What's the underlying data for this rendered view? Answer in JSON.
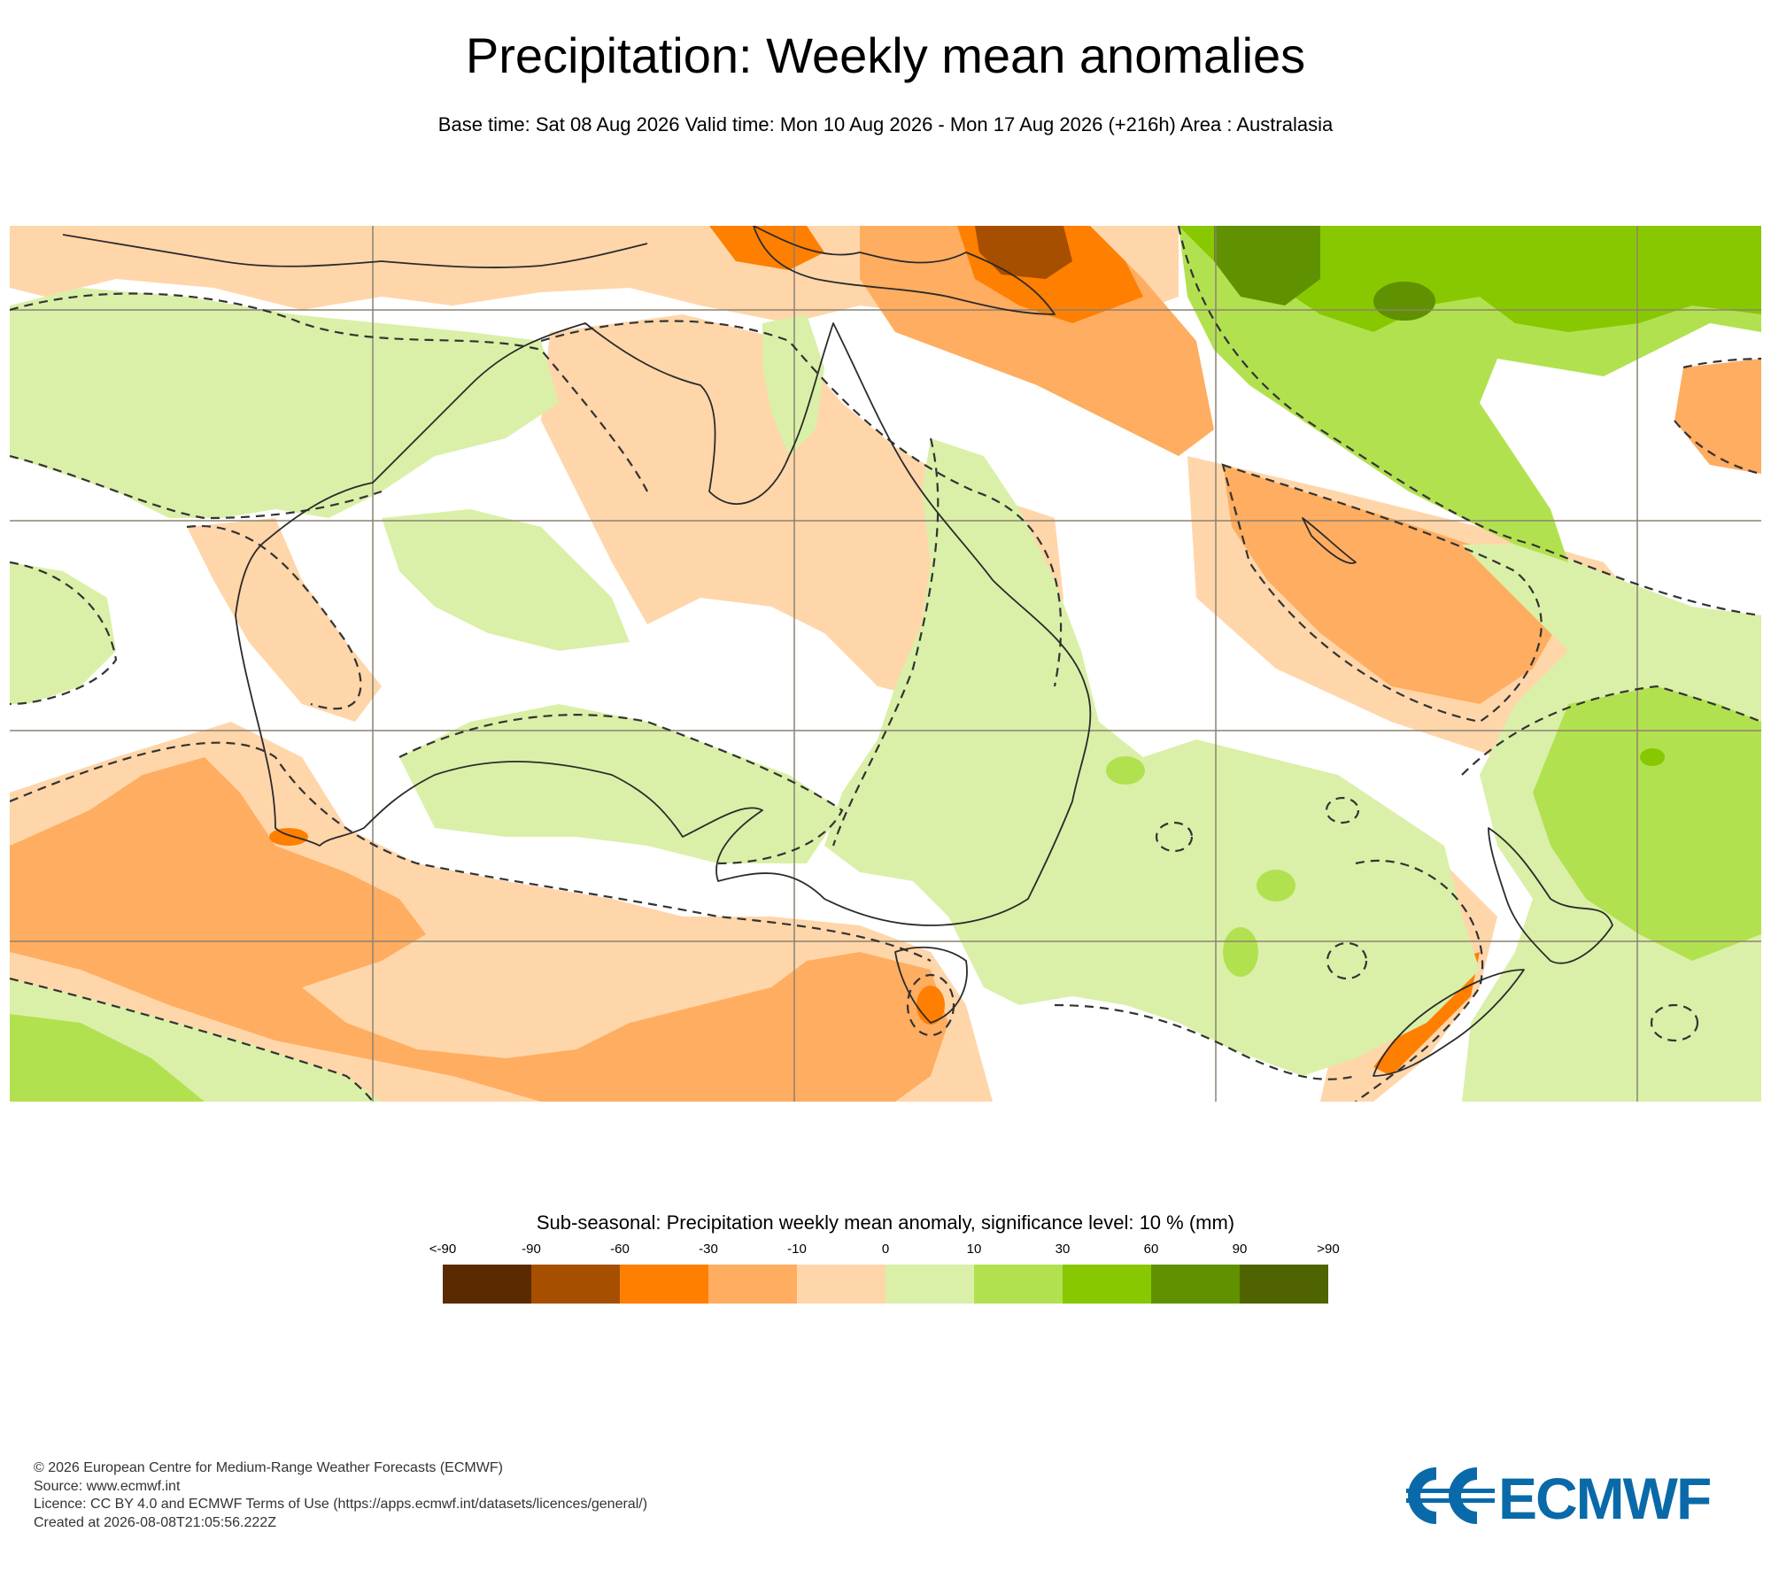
{
  "header": {
    "title": "Precipitation: Weekly mean anomalies",
    "subtitle": "Base time: Sat 08 Aug 2026 Valid time: Mon 10 Aug 2026 - Mon 17 Aug 2026 (+216h) Area : Australasia"
  },
  "legend": {
    "title": "Sub-seasonal: Precipitation weekly mean anomaly, significance level: 10 % (mm)",
    "labels": [
      "<-90",
      "-90",
      "-60",
      "-30",
      "-10",
      "0",
      "10",
      "30",
      "60",
      "90",
      ">90"
    ],
    "colors": [
      "#5a2a00",
      "#a64f00",
      "#ff7f00",
      "#ffad60",
      "#ffd6aa",
      "#daf0a8",
      "#b2e150",
      "#88c800",
      "#5f9100",
      "#4f6400"
    ]
  },
  "footer": {
    "line1": "© 2026 European Centre for Medium-Range Weather Forecasts (ECMWF)",
    "line2": "Source: www.ecmwf.int",
    "line3": "Licence: CC BY 4.0 and ECMWF Terms of Use (https://apps.ecmwf.int/datasets/licences/general/)",
    "line4": "Created at 2026-08-08T21:05:56.222Z"
  },
  "logo": {
    "text": "ECMWF",
    "color": "#0a6aa9"
  }
}
